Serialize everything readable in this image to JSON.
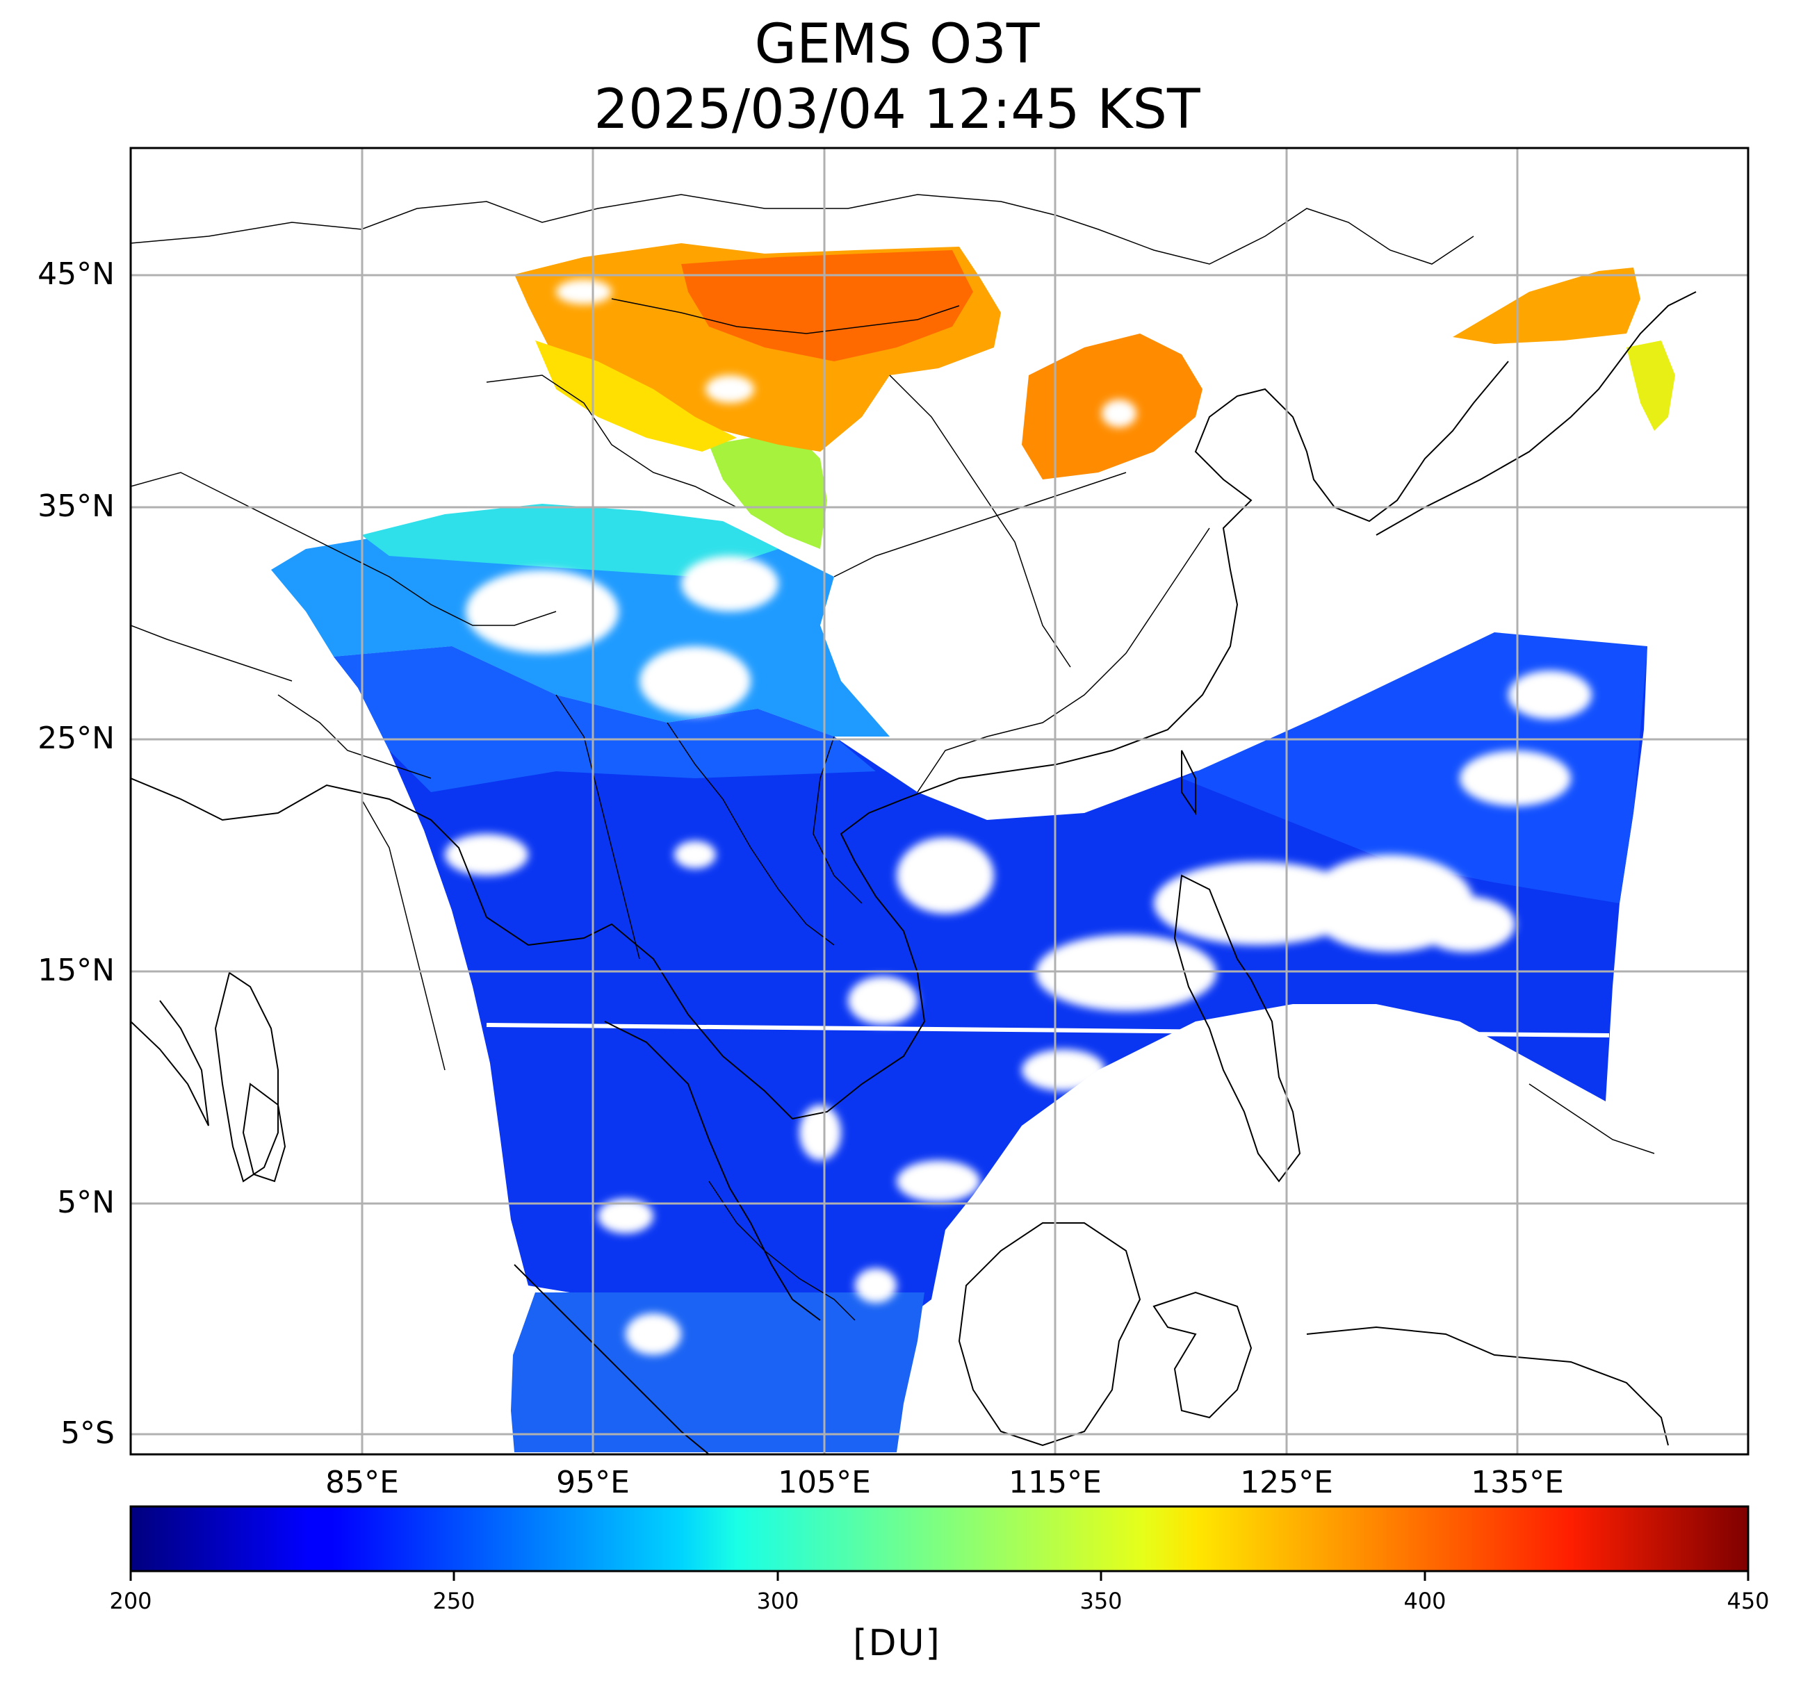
{
  "title_line1": "GEMS O3T",
  "title_line2": "2025/03/04 12:45 KST",
  "lat_labels": [
    "45°N",
    "35°N",
    "25°N",
    "15°N",
    "5°N",
    "5°S"
  ],
  "lon_labels": [
    "85°E",
    "95°E",
    "105°E",
    "115°E",
    "125°E",
    "135°E"
  ],
  "colorbar": {
    "colormap": "jet",
    "min": 200,
    "max": 450,
    "ticks": [
      "200",
      "250",
      "300",
      "350",
      "400",
      "450"
    ],
    "label": "[DU]"
  },
  "map": {
    "lon_range": [
      75,
      145
    ],
    "lat_range": [
      -6,
      50.5
    ],
    "graticule_color": "#b0b0b0",
    "coastline_color": "#000000",
    "no_data_color": "#ffffff"
  }
}
